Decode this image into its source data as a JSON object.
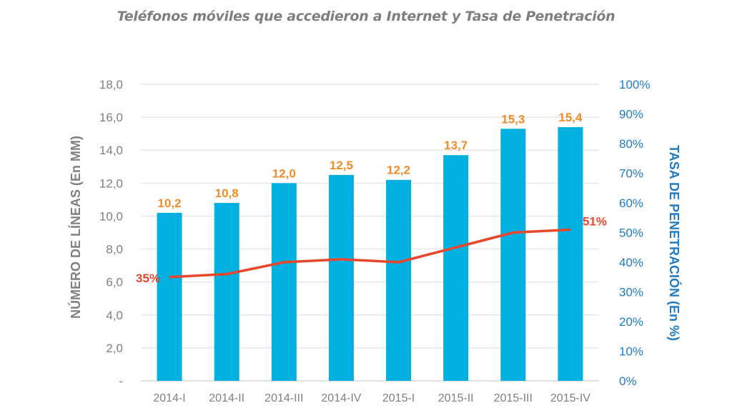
{
  "chart_data": {
    "type": "bar",
    "title": "Teléfonos móviles que accedieron a Internet y Tasa de Penetración",
    "categories": [
      "2014-I",
      "2014-II",
      "2014-III",
      "2014-IV",
      "2015-I",
      "2015-II",
      "2015-III",
      "2015-IV"
    ],
    "series": [
      {
        "name": "Número de líneas",
        "type": "bar",
        "axis": "left",
        "color": "#00b0e0",
        "values": [
          10.2,
          10.8,
          12.0,
          12.5,
          12.2,
          13.7,
          15.3,
          15.4
        ],
        "labels": [
          "10,2",
          "10,8",
          "12,0",
          "12,5",
          "12,2",
          "13,7",
          "15,3",
          "15,4"
        ]
      },
      {
        "name": "Tasa de penetración",
        "type": "line",
        "axis": "right",
        "color": "#e8472d",
        "values": [
          35,
          36,
          40,
          41,
          40,
          45,
          50,
          51
        ],
        "labels": {
          "first": "35%",
          "last": "51%"
        }
      }
    ],
    "ylabel_left": "NÚMERO DE LÍNEAS (En MM)",
    "ylabel_right": "TASA DE PENETRACIÓN (En %)",
    "ylim_left": [
      0,
      18
    ],
    "ylim_right": [
      0,
      100
    ],
    "yticks_left": [
      "-",
      "2,0",
      "4,0",
      "6,0",
      "8,0",
      "10,0",
      "12,0",
      "14,0",
      "16,0",
      "18,0"
    ],
    "yticks_right": [
      "0%",
      "10%",
      "20%",
      "30%",
      "40%",
      "50%",
      "60%",
      "70%",
      "80%",
      "90%",
      "100%"
    ],
    "grid": true,
    "colors": {
      "bar_label": "#f28c28",
      "right_axis": "#1f7bc4",
      "left_axis": "#808080"
    }
  }
}
